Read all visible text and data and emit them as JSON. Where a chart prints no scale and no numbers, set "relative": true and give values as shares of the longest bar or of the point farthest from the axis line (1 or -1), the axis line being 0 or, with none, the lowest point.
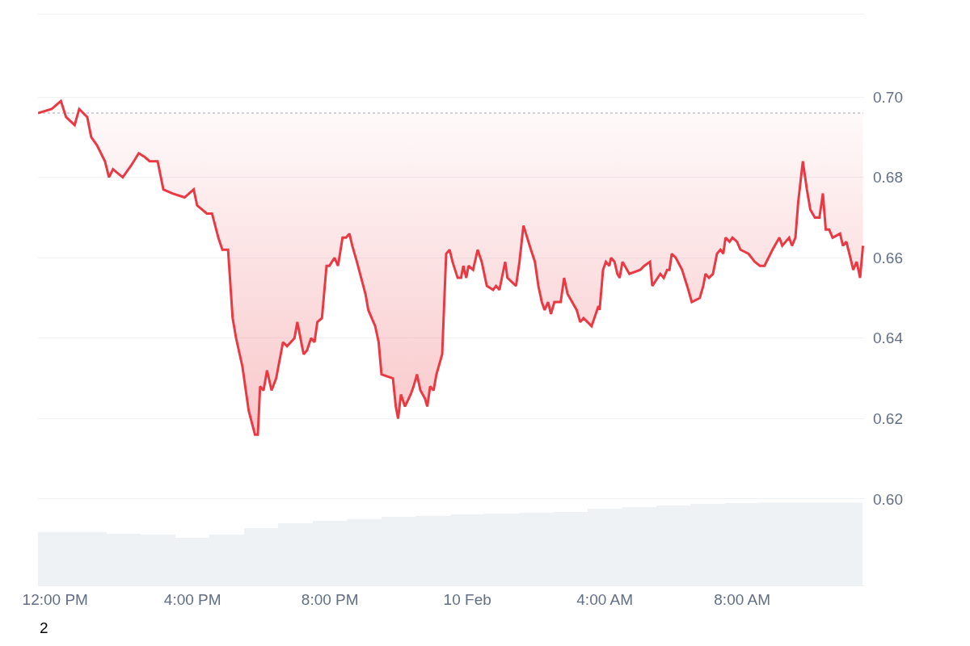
{
  "chart_data": [
    {
      "type": "line",
      "x": [
        "--02-09T11:30",
        "--02-09T11:54",
        "--02-09T12:10",
        "--02-09T12:19",
        "--02-09T12:34",
        "--02-09T12:42",
        "--02-09T12:56",
        "--02-09T13:03",
        "--02-09T13:13",
        "--02-09T13:27",
        "--02-09T13:34",
        "--02-09T13:41",
        "--02-09T13:58",
        "--02-09T14:13",
        "--02-09T14:26",
        "--02-09T14:37",
        "--02-09T14:45",
        "--02-09T14:59",
        "--02-09T15:09",
        "--02-09T15:25",
        "--02-09T15:46",
        "--02-09T16:02",
        "--02-09T16:08",
        "--02-09T16:25",
        "--02-09T16:34",
        "--02-09T16:45",
        "--02-09T16:52",
        "--02-09T17:02",
        "--02-09T17:10",
        "--02-09T17:16",
        "--02-09T17:27",
        "--02-09T17:38",
        "--02-09T17:49",
        "--02-09T17:54",
        "--02-09T17:58",
        "--02-09T18:04",
        "--02-09T18:10",
        "--02-09T18:18",
        "--02-09T18:26",
        "--02-09T18:38",
        "--02-09T18:45",
        "--02-09T18:58",
        "--02-09T19:03",
        "--02-09T19:14",
        "--02-09T19:20",
        "--02-09T19:27",
        "--02-09T19:33",
        "--02-09T19:38",
        "--02-09T19:46",
        "--02-09T19:54",
        "--02-09T19:59",
        "--02-09T20:08",
        "--02-09T20:14",
        "--02-09T20:22",
        "--02-09T20:28",
        "--02-09T20:34",
        "--02-09T20:39",
        "--02-09T20:47",
        "--02-09T21:02",
        "--02-09T21:07",
        "--02-09T21:19",
        "--02-09T21:25",
        "--02-09T21:30",
        "--02-09T21:50",
        "--02-09T21:55",
        "--02-09T21:59",
        "--02-09T22:04",
        "--02-09T22:11",
        "--02-09T22:21",
        "--02-09T22:26",
        "--02-09T22:32",
        "--02-09T22:38",
        "--02-09T22:46",
        "--02-09T22:50",
        "--02-09T22:55",
        "--02-09T23:01",
        "--02-09T23:06",
        "--02-09T23:16",
        "--02-09T23:23",
        "--02-09T23:29",
        "--02-09T23:34",
        "--02-09T23:43",
        "--02-09T23:49",
        "--02-09T23:53",
        "--02-09T23:58",
        "--02-10T00:02",
        "--02-10T00:10",
        "--02-10T00:18",
        "--02-10T00:25",
        "--02-10T00:34",
        "--02-10T00:45",
        "--02-10T00:50",
        "--02-10T00:56",
        "--02-10T01:06",
        "--02-10T01:10",
        "--02-10T01:25",
        "--02-10T01:31",
        "--02-10T01:38",
        "--02-10T01:51",
        "--02-10T01:58",
        "--02-10T02:04",
        "--02-10T02:10",
        "--02-10T02:15",
        "--02-10T02:21",
        "--02-10T02:26",
        "--02-10T02:32",
        "--02-10T02:43",
        "--02-10T02:49",
        "--02-10T02:55",
        "--02-10T03:03",
        "--02-10T03:11",
        "--02-10T03:17",
        "--02-10T03:23",
        "--02-10T03:37",
        "--02-10T03:49",
        "--02-10T03:51",
        "--02-10T03:57",
        "--02-10T04:02",
        "--02-10T04:08",
        "--02-10T04:11",
        "--02-10T04:17",
        "--02-10T04:22",
        "--02-10T04:26",
        "--02-10T04:31",
        "--02-10T04:43",
        "--02-10T05:02",
        "--02-10T05:09",
        "--02-10T05:19",
        "--02-10T05:23",
        "--02-10T05:37",
        "--02-10T05:43",
        "--02-10T05:49",
        "--02-10T05:53",
        "--02-10T05:57",
        "--02-10T06:04",
        "--02-10T06:15",
        "--02-10T06:26",
        "--02-10T06:32",
        "--02-10T06:46",
        "--02-10T06:52",
        "--02-10T06:56",
        "--02-10T07:02",
        "--02-10T07:09",
        "--02-10T07:16",
        "--02-10T07:22",
        "--02-10T07:27",
        "--02-10T07:31",
        "--02-10T07:38",
        "--02-10T07:43",
        "--02-10T07:51",
        "--02-10T07:57",
        "--02-10T08:11",
        "--02-10T08:22",
        "--02-10T08:31",
        "--02-10T08:39",
        "--02-10T08:53",
        "--02-10T09:05",
        "--02-10T09:10",
        "--02-10T09:22",
        "--02-10T09:27",
        "--02-10T09:33",
        "--02-10T09:38",
        "--02-10T09:46",
        "--02-10T09:53",
        "--02-10T09:59",
        "--02-10T10:07",
        "--02-10T10:15",
        "--02-10T10:21",
        "--02-10T10:26",
        "--02-10T10:32",
        "--02-10T10:38",
        "--02-10T10:51",
        "--02-10T10:56",
        "--02-10T11:02",
        "--02-10T11:09",
        "--02-10T11:14",
        "--02-10T11:20",
        "--02-10T11:26",
        "--02-10T11:31"
      ],
      "series": [
        {
          "color": "#ea3943",
          "values": [
            0.696,
            0.697,
            0.699,
            0.695,
            0.693,
            0.697,
            0.695,
            0.69,
            0.688,
            0.684,
            0.68,
            0.682,
            0.68,
            0.683,
            0.686,
            0.685,
            0.684,
            0.684,
            0.677,
            0.676,
            0.675,
            0.677,
            0.673,
            0.671,
            0.671,
            0.665,
            0.662,
            0.662,
            0.645,
            0.64,
            0.633,
            0.622,
            0.616,
            0.616,
            0.628,
            0.627,
            0.632,
            0.627,
            0.63,
            0.639,
            0.638,
            0.64,
            0.644,
            0.636,
            0.637,
            0.64,
            0.639,
            0.644,
            0.645,
            0.658,
            0.658,
            0.66,
            0.658,
            0.665,
            0.665,
            0.666,
            0.663,
            0.659,
            0.651,
            0.647,
            0.643,
            0.639,
            0.631,
            0.63,
            0.623,
            0.62,
            0.626,
            0.623,
            0.626,
            0.628,
            0.631,
            0.627,
            0.625,
            0.623,
            0.628,
            0.627,
            0.631,
            0.636,
            0.661,
            0.662,
            0.659,
            0.655,
            0.655,
            0.658,
            0.655,
            0.658,
            0.657,
            0.662,
            0.659,
            0.653,
            0.652,
            0.653,
            0.652,
            0.659,
            0.655,
            0.653,
            0.659,
            0.668,
            0.662,
            0.659,
            0.653,
            0.649,
            0.647,
            0.649,
            0.646,
            0.649,
            0.649,
            0.655,
            0.651,
            0.649,
            0.647,
            0.644,
            0.645,
            0.643,
            0.648,
            0.647,
            0.657,
            0.659,
            0.658,
            0.66,
            0.659,
            0.656,
            0.655,
            0.659,
            0.656,
            0.657,
            0.658,
            0.659,
            0.653,
            0.656,
            0.655,
            0.657,
            0.657,
            0.661,
            0.66,
            0.657,
            0.652,
            0.649,
            0.65,
            0.653,
            0.656,
            0.655,
            0.656,
            0.661,
            0.662,
            0.661,
            0.665,
            0.664,
            0.665,
            0.664,
            0.662,
            0.661,
            0.659,
            0.658,
            0.658,
            0.662,
            0.665,
            0.663,
            0.665,
            0.663,
            0.665,
            0.674,
            0.684,
            0.677,
            0.672,
            0.67,
            0.67,
            0.676,
            0.667,
            0.667,
            0.665,
            0.666,
            0.663,
            0.664,
            0.66,
            0.657,
            0.659,
            0.655,
            0.663
          ]
        }
      ],
      "xlim": [
        "--02-09T11:30",
        "--02-10T11:33"
      ],
      "xticks": [
        {
          "value": "--02-09T12:00",
          "label": "12:00 PM"
        },
        {
          "value": "--02-09T16:00",
          "label": "4:00 PM"
        },
        {
          "value": "--02-09T20:00",
          "label": "8:00 PM"
        },
        {
          "value": "--02-10T00:00",
          "label": "10 Feb"
        },
        {
          "value": "--02-10T04:00",
          "label": "4:00 AM"
        },
        {
          "value": "--02-10T08:00",
          "label": "8:00 AM"
        }
      ],
      "ylim": [
        0.5785,
        0.7205
      ],
      "yticks": [
        {
          "value": 0.6,
          "label": "0.60"
        },
        {
          "value": 0.62,
          "label": "0.62"
        },
        {
          "value": 0.64,
          "label": "0.64"
        },
        {
          "value": 0.66,
          "label": "0.66"
        },
        {
          "value": 0.68,
          "label": "0.68"
        },
        {
          "value": 0.7,
          "label": "0.70"
        }
      ],
      "ref_lines": [
        {
          "axis": "y",
          "value": 0.696,
          "color": "#a1a7bb",
          "line_style": "dotted"
        }
      ],
      "grid": "y",
      "annotations": [
        "2"
      ]
    },
    {
      "type": "bar",
      "relative": true,
      "color": "#eff2f5",
      "x": [
        "--02-09T12:00",
        "--02-09T13:00",
        "--02-09T14:00",
        "--02-09T15:00",
        "--02-09T16:00",
        "--02-09T17:00",
        "--02-09T18:00",
        "--02-09T19:00",
        "--02-09T20:00",
        "--02-09T21:00",
        "--02-09T22:00",
        "--02-09T23:00",
        "--02-10T00:00",
        "--02-10T01:00",
        "--02-10T02:00",
        "--02-10T03:00",
        "--02-10T04:00",
        "--02-10T05:00",
        "--02-10T06:00",
        "--02-10T07:00",
        "--02-10T08:00",
        "--02-10T09:00",
        "--02-10T10:00",
        "--02-10T11:00"
      ],
      "values": [
        0.64,
        0.64,
        0.62,
        0.61,
        0.57,
        0.61,
        0.69,
        0.75,
        0.78,
        0.8,
        0.82,
        0.83,
        0.85,
        0.86,
        0.87,
        0.88,
        0.92,
        0.94,
        0.96,
        0.98,
        0.99,
        1,
        1,
        1
      ],
      "xlim": [
        "--02-09T11:30",
        "--02-10T11:33"
      ]
    }
  ]
}
